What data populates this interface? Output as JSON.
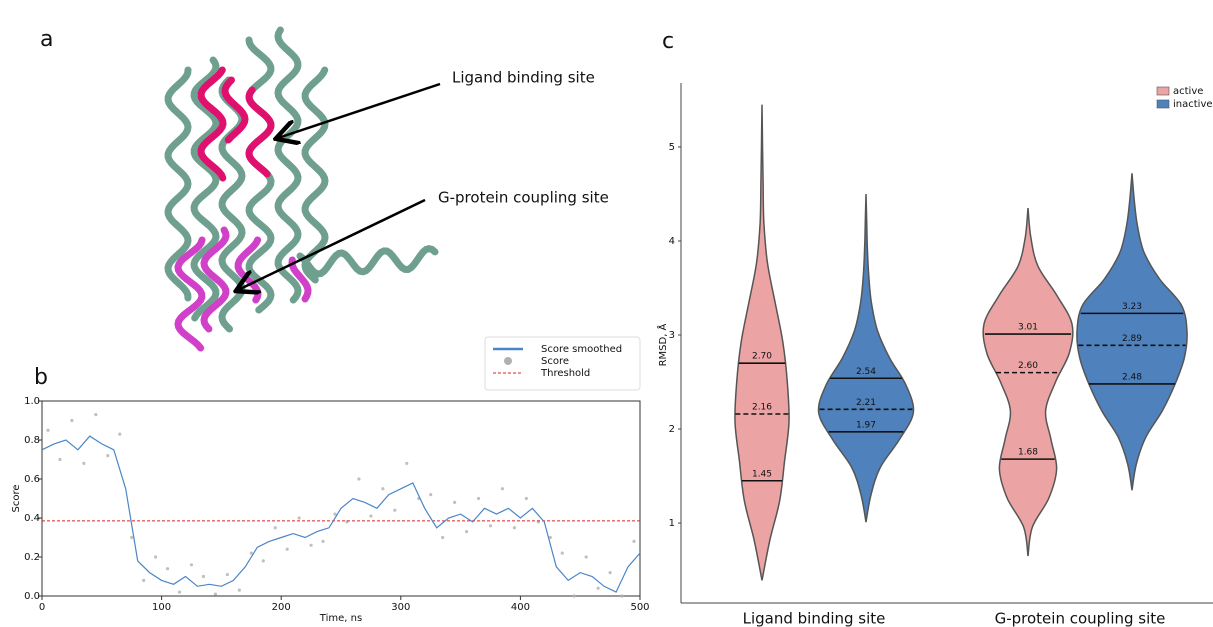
{
  "panel_labels": [
    "a",
    "b",
    "c"
  ],
  "structure": {
    "annotations": [
      "Ligand binding site",
      "G-protein coupling site"
    ]
  },
  "chart_data": [
    {
      "type": "line",
      "xlabel": "Time, ns",
      "ylabel": "Score",
      "xlim": [
        0,
        500
      ],
      "xticks": [
        0,
        100,
        200,
        300,
        400,
        500
      ],
      "ylim": [
        0,
        1.0
      ],
      "yticks": [
        {
          "value": 0,
          "label": "0.0"
        },
        0.2,
        0.4,
        0.6,
        0.8,
        {
          "value": 1.0,
          "label": "1.0"
        }
      ],
      "series": [
        {
          "name": "Score smoothed",
          "style": "line",
          "color": "#4a86c8",
          "x": [
            0,
            10,
            20,
            30,
            40,
            50,
            60,
            70,
            80,
            90,
            100,
            110,
            120,
            130,
            140,
            150,
            160,
            170,
            180,
            190,
            200,
            210,
            220,
            230,
            240,
            250,
            260,
            270,
            280,
            290,
            300,
            310,
            320,
            330,
            340,
            350,
            360,
            370,
            380,
            390,
            400,
            410,
            420,
            430,
            440,
            450,
            460,
            470,
            480,
            490,
            500
          ],
          "values": [
            0.75,
            0.78,
            0.8,
            0.75,
            0.82,
            0.78,
            0.75,
            0.55,
            0.18,
            0.12,
            0.08,
            0.06,
            0.1,
            0.05,
            0.06,
            0.05,
            0.08,
            0.15,
            0.25,
            0.28,
            0.3,
            0.32,
            0.3,
            0.33,
            0.35,
            0.45,
            0.5,
            0.48,
            0.45,
            0.52,
            0.55,
            0.58,
            0.45,
            0.35,
            0.4,
            0.42,
            0.38,
            0.45,
            0.42,
            0.45,
            0.4,
            0.45,
            0.38,
            0.15,
            0.08,
            0.12,
            0.1,
            0.05,
            0.02,
            0.15,
            0.22
          ]
        },
        {
          "name": "Score",
          "style": "markers",
          "color": "#b0b0b0",
          "x": [
            5,
            15,
            25,
            35,
            45,
            55,
            65,
            75,
            85,
            95,
            105,
            115,
            125,
            135,
            145,
            155,
            165,
            175,
            185,
            195,
            205,
            215,
            225,
            235,
            245,
            255,
            265,
            275,
            285,
            295,
            305,
            315,
            325,
            335,
            345,
            355,
            365,
            375,
            385,
            395,
            405,
            415,
            425,
            435,
            445,
            455,
            465,
            475,
            485,
            495
          ],
          "values": [
            0.85,
            0.7,
            0.9,
            0.68,
            0.93,
            0.72,
            0.83,
            0.3,
            0.08,
            0.2,
            0.14,
            0.02,
            0.16,
            0.1,
            0.01,
            0.11,
            0.03,
            0.22,
            0.18,
            0.35,
            0.24,
            0.4,
            0.26,
            0.28,
            0.42,
            0.38,
            0.6,
            0.41,
            0.55,
            0.44,
            0.68,
            0.5,
            0.52,
            0.3,
            0.48,
            0.33,
            0.5,
            0.36,
            0.55,
            0.35,
            0.5,
            0.38,
            0.3,
            0.22,
            0.0,
            0.2,
            0.04,
            0.12,
            0.0,
            0.28
          ]
        },
        {
          "name": "Threshold",
          "style": "dashed",
          "color": "#e02020",
          "x": [
            0,
            500
          ],
          "values": [
            0.385,
            0.385
          ]
        }
      ]
    },
    {
      "type": "violin",
      "ylabel": "RMSD, Å",
      "ylim": [
        0.15,
        5.68
      ],
      "yticks": [
        1,
        2,
        3,
        4,
        5
      ],
      "categories": [
        "Ligand binding site",
        "G-protein coupling site"
      ],
      "legend": "upper right",
      "series": [
        {
          "name": "active",
          "color": "#eca3a4",
          "values": [
            {
              "min": 0.39,
              "max": 5.45,
              "widths": [
                0,
                0.14,
                0.32,
                0.41,
                0.49,
                0.46,
                0.38,
                0.24,
                0.1,
                0.035,
                0.02,
                0.01,
                0
              ],
              "q1": 1.45,
              "median": 2.16,
              "q3": 2.7,
              "labels": [
                "1.45",
                "2.16",
                "2.70"
              ]
            },
            {
              "min": 0.65,
              "max": 4.35,
              "widths": [
                0,
                0.08,
                0.38,
                0.52,
                0.42,
                0.32,
                0.5,
                0.75,
                0.8,
                0.52,
                0.18,
                0.05,
                0
              ],
              "q1": 1.68,
              "median": 2.6,
              "q3": 3.01,
              "labels": [
                "1.68",
                "2.60",
                "3.01"
              ]
            }
          ]
        },
        {
          "name": "inactive",
          "color": "#4f81bd",
          "values": [
            {
              "min": 1.01,
              "max": 4.5,
              "widths": [
                0,
                0.09,
                0.26,
                0.6,
                0.86,
                0.73,
                0.43,
                0.21,
                0.1,
                0.05,
                0.025,
                0.013,
                0
              ],
              "q1": 1.97,
              "median": 2.21,
              "q3": 2.54,
              "labels": [
                "1.97",
                "2.21",
                "2.54"
              ]
            },
            {
              "min": 1.35,
              "max": 4.72,
              "widths": [
                0,
                0.08,
                0.25,
                0.55,
                0.78,
                0.95,
                1.0,
                0.9,
                0.5,
                0.22,
                0.1,
                0.04,
                0
              ],
              "q1": 2.48,
              "median": 2.89,
              "q3": 3.23,
              "labels": [
                "2.48",
                "2.89",
                "3.23"
              ]
            }
          ]
        }
      ]
    }
  ]
}
